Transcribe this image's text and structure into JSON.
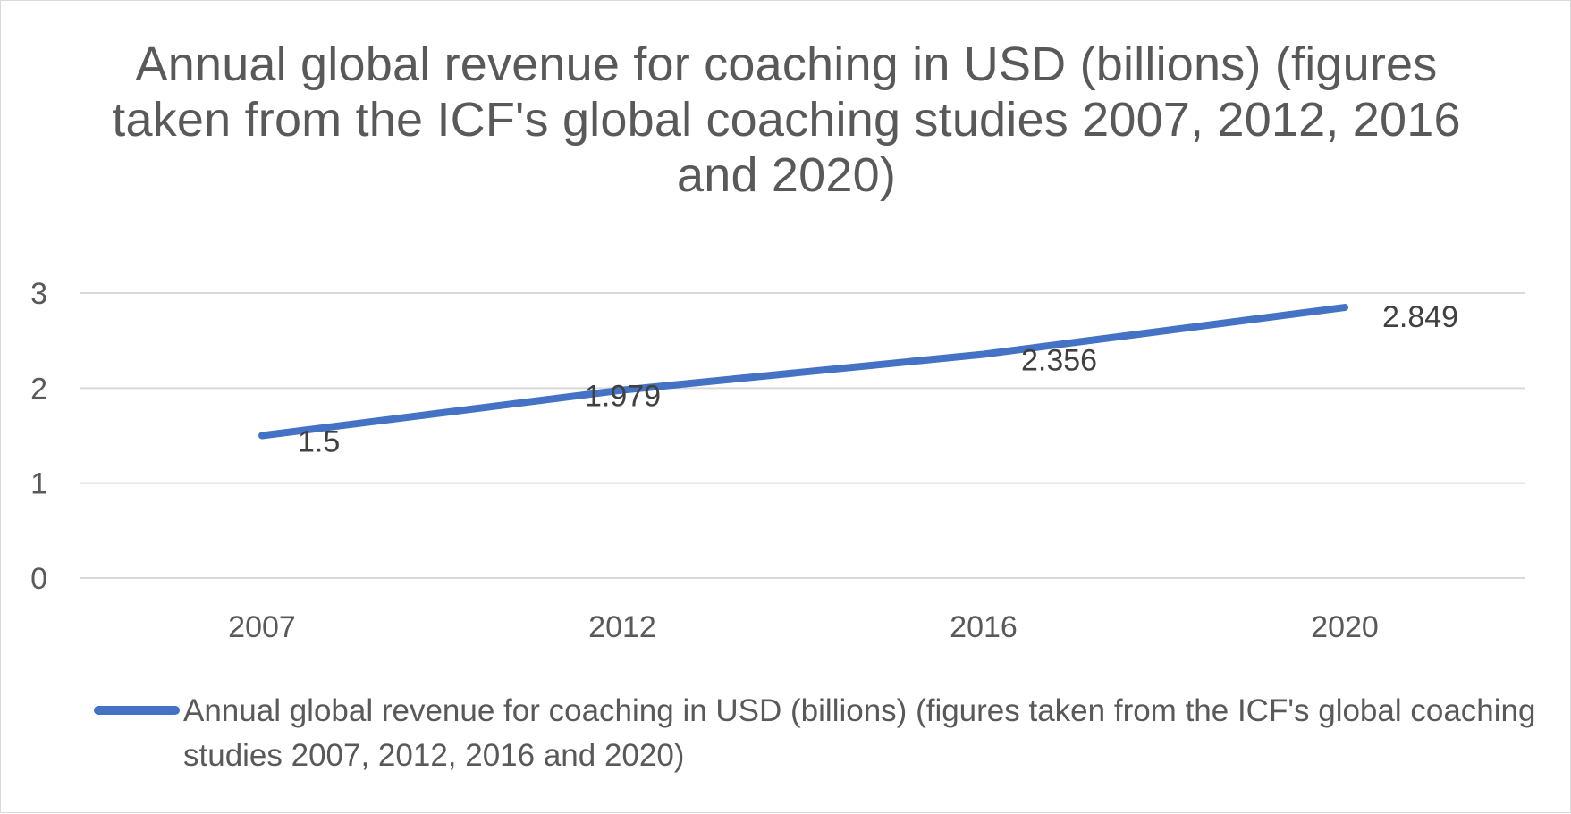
{
  "chart_data": {
    "type": "line",
    "title": "Annual global revenue for coaching in USD (billions) (figures taken from the ICF's global coaching studies 2007, 2012, 2016 and 2020)",
    "categories": [
      "2007",
      "2012",
      "2016",
      "2020"
    ],
    "series": [
      {
        "name": "Annual global revenue for coaching in USD (billions) (figures taken from the ICF's global coaching studies 2007, 2012, 2016 and 2020)",
        "values": [
          1.5,
          1.979,
          2.356,
          2.849
        ],
        "data_labels": [
          "1.5",
          "1.979",
          "2.356",
          "2.849"
        ]
      }
    ],
    "y_ticks": [
      "0",
      "1",
      "2",
      "3"
    ],
    "xlabel": "",
    "ylabel": "",
    "ylim": [
      0,
      3
    ],
    "grid": true,
    "legend_position": "bottom",
    "colors": {
      "series": "#4472c4",
      "grid": "#d9d9d9",
      "text": "#595959",
      "data_label": "#404040"
    }
  }
}
